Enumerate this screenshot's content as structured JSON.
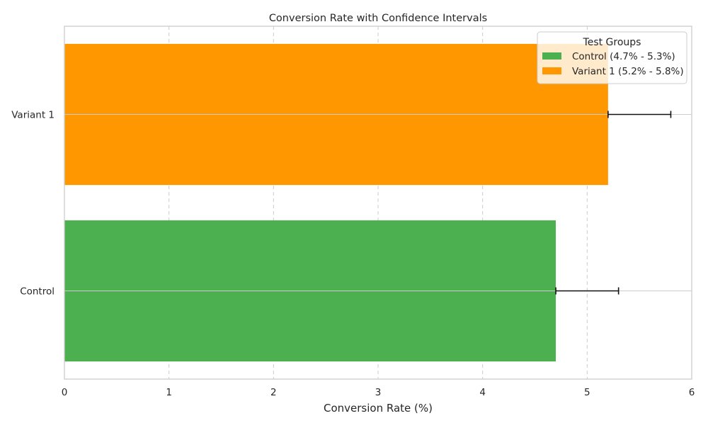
{
  "chart_data": {
    "type": "bar",
    "orientation": "horizontal",
    "title": "Conversion Rate with Confidence Intervals",
    "xlabel": "Conversion Rate (%)",
    "ylabel": "",
    "xlim": [
      0,
      6
    ],
    "xticks": [
      "0",
      "1",
      "2",
      "3",
      "4",
      "5",
      "6"
    ],
    "grid": "x-dashed",
    "categories": [
      "Control",
      "Variant 1"
    ],
    "values": [
      4.7,
      5.2
    ],
    "ci_low": [
      4.7,
      5.2
    ],
    "ci_high": [
      5.3,
      5.8
    ],
    "colors": [
      "#4caf50",
      "#ff9800"
    ],
    "legend": {
      "title": "Test Groups",
      "placement": "top-right",
      "entries": [
        "Control (4.7% - 5.3%)",
        "Variant 1 (5.2% - 5.8%)"
      ]
    }
  }
}
